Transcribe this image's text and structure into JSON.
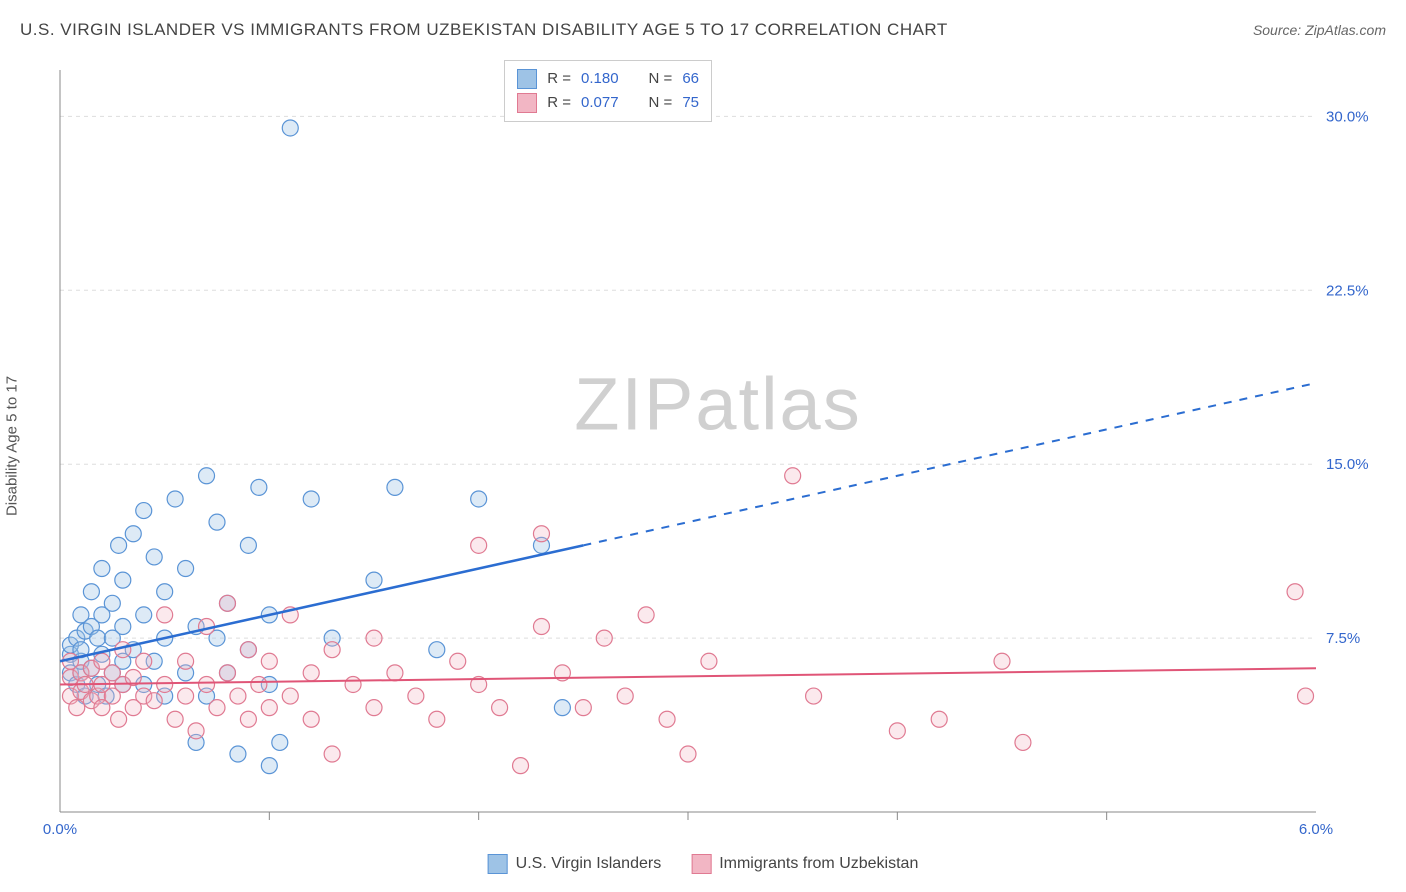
{
  "title": "U.S. VIRGIN ISLANDER VS IMMIGRANTS FROM UZBEKISTAN DISABILITY AGE 5 TO 17 CORRELATION CHART",
  "source": "Source: ZipAtlas.com",
  "ylabel": "Disability Age 5 to 17",
  "watermark_a": "ZIP",
  "watermark_b": "atlas",
  "chart": {
    "type": "scatter",
    "xlim": [
      0,
      6.0
    ],
    "ylim": [
      0,
      32
    ],
    "xticks": [
      0.0,
      6.0
    ],
    "xtick_labels": [
      "0.0%",
      "6.0%"
    ],
    "xminor_ticks": [
      1.0,
      2.0,
      3.0,
      4.0,
      5.0
    ],
    "yticks": [
      7.5,
      15.0,
      22.5,
      30.0
    ],
    "ytick_labels": [
      "7.5%",
      "15.0%",
      "22.5%",
      "30.0%"
    ],
    "grid_color": "#dddddd",
    "axis_color": "#888888",
    "background_color": "#ffffff",
    "marker_radius": 8,
    "series": [
      {
        "name": "U.S. Virgin Islanders",
        "color_fill": "#9ec3e6",
        "color_stroke": "#5a94d6",
        "trend_color": "#2b6dd1",
        "R": "0.180",
        "N": "66",
        "trend": {
          "x1": 0.0,
          "y1": 6.5,
          "x2": 2.5,
          "y2": 11.5,
          "x2d": 6.0,
          "y2d": 18.5
        },
        "points": [
          [
            0.05,
            6.0
          ],
          [
            0.05,
            6.8
          ],
          [
            0.05,
            7.2
          ],
          [
            0.08,
            5.5
          ],
          [
            0.08,
            7.5
          ],
          [
            0.1,
            6.0
          ],
          [
            0.1,
            6.5
          ],
          [
            0.1,
            7.0
          ],
          [
            0.1,
            8.5
          ],
          [
            0.12,
            5.0
          ],
          [
            0.12,
            7.8
          ],
          [
            0.15,
            6.2
          ],
          [
            0.15,
            8.0
          ],
          [
            0.15,
            9.5
          ],
          [
            0.18,
            5.5
          ],
          [
            0.18,
            7.5
          ],
          [
            0.2,
            6.8
          ],
          [
            0.2,
            8.5
          ],
          [
            0.2,
            10.5
          ],
          [
            0.22,
            5.0
          ],
          [
            0.25,
            6.0
          ],
          [
            0.25,
            7.5
          ],
          [
            0.25,
            9.0
          ],
          [
            0.28,
            11.5
          ],
          [
            0.3,
            5.5
          ],
          [
            0.3,
            6.5
          ],
          [
            0.3,
            8.0
          ],
          [
            0.3,
            10.0
          ],
          [
            0.35,
            7.0
          ],
          [
            0.35,
            12.0
          ],
          [
            0.4,
            5.5
          ],
          [
            0.4,
            8.5
          ],
          [
            0.4,
            13.0
          ],
          [
            0.45,
            6.5
          ],
          [
            0.45,
            11.0
          ],
          [
            0.5,
            5.0
          ],
          [
            0.5,
            7.5
          ],
          [
            0.5,
            9.5
          ],
          [
            0.55,
            13.5
          ],
          [
            0.6,
            6.0
          ],
          [
            0.6,
            10.5
          ],
          [
            0.65,
            3.0
          ],
          [
            0.65,
            8.0
          ],
          [
            0.7,
            5.0
          ],
          [
            0.7,
            14.5
          ],
          [
            0.75,
            7.5
          ],
          [
            0.75,
            12.5
          ],
          [
            0.8,
            6.0
          ],
          [
            0.8,
            9.0
          ],
          [
            0.85,
            2.5
          ],
          [
            0.9,
            7.0
          ],
          [
            0.9,
            11.5
          ],
          [
            0.95,
            14.0
          ],
          [
            1.0,
            5.5
          ],
          [
            1.0,
            8.5
          ],
          [
            1.0,
            2.0
          ],
          [
            1.05,
            3.0
          ],
          [
            1.1,
            29.5
          ],
          [
            1.2,
            13.5
          ],
          [
            1.3,
            7.5
          ],
          [
            1.5,
            10.0
          ],
          [
            1.6,
            14.0
          ],
          [
            1.8,
            7.0
          ],
          [
            2.0,
            13.5
          ],
          [
            2.3,
            11.5
          ],
          [
            2.4,
            4.5
          ]
        ]
      },
      {
        "name": "Immigrants from Uzbekistan",
        "color_fill": "#f2b6c4",
        "color_stroke": "#e07a92",
        "trend_color": "#e05577",
        "R": "0.077",
        "N": "75",
        "trend": {
          "x1": 0.0,
          "y1": 5.5,
          "x2": 6.0,
          "y2": 6.2
        },
        "points": [
          [
            0.05,
            5.0
          ],
          [
            0.05,
            5.8
          ],
          [
            0.05,
            6.5
          ],
          [
            0.08,
            4.5
          ],
          [
            0.1,
            5.2
          ],
          [
            0.1,
            6.0
          ],
          [
            0.12,
            5.5
          ],
          [
            0.15,
            4.8
          ],
          [
            0.15,
            6.2
          ],
          [
            0.18,
            5.0
          ],
          [
            0.2,
            4.5
          ],
          [
            0.2,
            5.5
          ],
          [
            0.2,
            6.5
          ],
          [
            0.25,
            5.0
          ],
          [
            0.25,
            6.0
          ],
          [
            0.28,
            4.0
          ],
          [
            0.3,
            5.5
          ],
          [
            0.3,
            7.0
          ],
          [
            0.35,
            4.5
          ],
          [
            0.35,
            5.8
          ],
          [
            0.4,
            5.0
          ],
          [
            0.4,
            6.5
          ],
          [
            0.45,
            4.8
          ],
          [
            0.5,
            5.5
          ],
          [
            0.5,
            8.5
          ],
          [
            0.55,
            4.0
          ],
          [
            0.6,
            5.0
          ],
          [
            0.6,
            6.5
          ],
          [
            0.65,
            3.5
          ],
          [
            0.7,
            5.5
          ],
          [
            0.7,
            8.0
          ],
          [
            0.75,
            4.5
          ],
          [
            0.8,
            6.0
          ],
          [
            0.8,
            9.0
          ],
          [
            0.85,
            5.0
          ],
          [
            0.9,
            4.0
          ],
          [
            0.9,
            7.0
          ],
          [
            0.95,
            5.5
          ],
          [
            1.0,
            4.5
          ],
          [
            1.0,
            6.5
          ],
          [
            1.1,
            5.0
          ],
          [
            1.1,
            8.5
          ],
          [
            1.2,
            4.0
          ],
          [
            1.2,
            6.0
          ],
          [
            1.3,
            7.0
          ],
          [
            1.3,
            2.5
          ],
          [
            1.4,
            5.5
          ],
          [
            1.5,
            4.5
          ],
          [
            1.5,
            7.5
          ],
          [
            1.6,
            6.0
          ],
          [
            1.7,
            5.0
          ],
          [
            1.8,
            4.0
          ],
          [
            1.9,
            6.5
          ],
          [
            2.0,
            5.5
          ],
          [
            2.0,
            11.5
          ],
          [
            2.1,
            4.5
          ],
          [
            2.2,
            2.0
          ],
          [
            2.3,
            8.0
          ],
          [
            2.3,
            12.0
          ],
          [
            2.4,
            6.0
          ],
          [
            2.5,
            4.5
          ],
          [
            2.6,
            7.5
          ],
          [
            2.7,
            5.0
          ],
          [
            2.8,
            8.5
          ],
          [
            2.9,
            4.0
          ],
          [
            3.0,
            2.5
          ],
          [
            3.1,
            6.5
          ],
          [
            3.5,
            14.5
          ],
          [
            3.6,
            5.0
          ],
          [
            4.0,
            3.5
          ],
          [
            4.2,
            4.0
          ],
          [
            4.5,
            6.5
          ],
          [
            4.6,
            3.0
          ],
          [
            5.9,
            9.5
          ],
          [
            5.95,
            5.0
          ]
        ]
      }
    ]
  },
  "stats_legend": {
    "rows": [
      {
        "swatch_fill": "#9ec3e6",
        "swatch_stroke": "#5a94d6",
        "r_label": "R =",
        "r_val": "0.180",
        "n_label": "N =",
        "n_val": "66"
      },
      {
        "swatch_fill": "#f2b6c4",
        "swatch_stroke": "#e07a92",
        "r_label": "R =",
        "r_val": "0.077",
        "n_label": "N =",
        "n_val": "75"
      }
    ]
  },
  "bottom_legend": [
    {
      "swatch_fill": "#9ec3e6",
      "swatch_stroke": "#5a94d6",
      "label": "U.S. Virgin Islanders"
    },
    {
      "swatch_fill": "#f2b6c4",
      "swatch_stroke": "#e07a92",
      "label": "Immigrants from Uzbekistan"
    }
  ]
}
